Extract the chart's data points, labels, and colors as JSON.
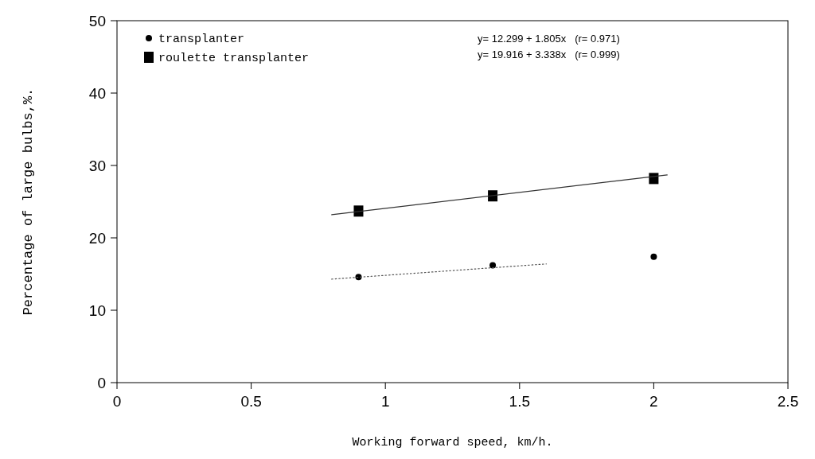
{
  "chart_data": {
    "type": "scatter",
    "xlabel": "Working forward speed, km/h.",
    "ylabel": "Percentage of large bulbs,%.",
    "xlim": [
      0,
      2.5
    ],
    "xticks": [
      0,
      0.5,
      1,
      1.5,
      2,
      2.5
    ],
    "ylim": [
      0,
      50
    ],
    "yticks": [
      0,
      10,
      20,
      30,
      40,
      50
    ],
    "grid": false,
    "legend": "top left",
    "annotations": [
      "y= 12.299 + 1.805x   (r= 0.971)",
      "y= 19.916 + 3.338x   (r= 0.999)"
    ],
    "series": [
      {
        "name": "transplanter",
        "type": "scatter",
        "marker": "circle",
        "color": "#000000",
        "x": [
          0.9,
          1.4,
          2.0
        ],
        "values": [
          14.6,
          16.2,
          17.4
        ]
      },
      {
        "name": "roulette transplanter",
        "type": "scatter",
        "marker": "square",
        "color": "#000000",
        "x": [
          0.9,
          1.4,
          2.0
        ],
        "values": [
          23.7,
          25.8,
          28.2
        ]
      },
      {
        "type": "line",
        "marker": "none",
        "line_style": "dotted",
        "color": "#555555",
        "x": [
          0.8,
          1.6
        ],
        "values": [
          14.3,
          16.4
        ]
      },
      {
        "type": "line",
        "marker": "none",
        "line_style": "solid",
        "color": "#333333",
        "x": [
          0.8,
          2.05
        ],
        "values": [
          23.2,
          28.7
        ]
      }
    ]
  }
}
